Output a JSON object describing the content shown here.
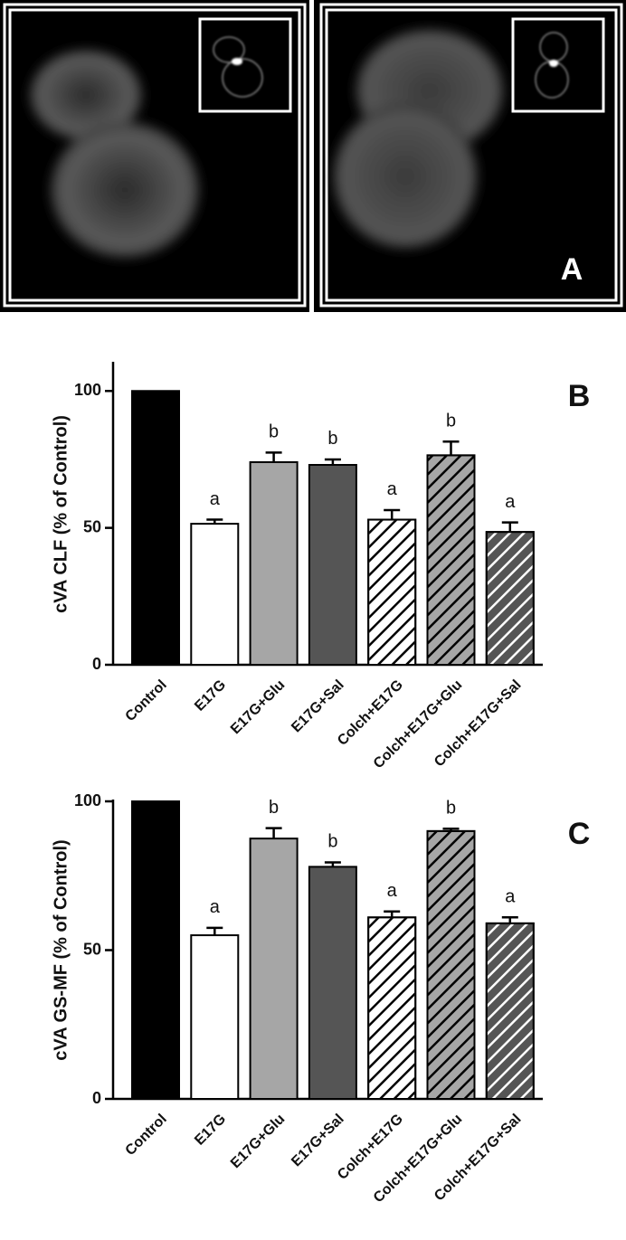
{
  "image_panel": {
    "label": "A"
  },
  "chart_data": [
    {
      "type": "bar",
      "panel_label": "B",
      "y_label": "cVA CLF (% of Control)",
      "categories": [
        "Control",
        "E17G",
        "E17G+Glu",
        "E17G+Sal",
        "Colch+E17G",
        "Colch+E17G+Glu",
        "Colch+E17G+Sal"
      ],
      "values": [
        100,
        51.5,
        74,
        73,
        53,
        76.5,
        48.5
      ],
      "errors": [
        null,
        1.5,
        3.5,
        2,
        3.5,
        5,
        3.5
      ],
      "annotations": [
        null,
        "a",
        "b",
        "b",
        "a",
        "b",
        "a"
      ],
      "colors": [
        "#000000",
        "#ffffff",
        "#a6a6a6",
        "#555555",
        "#ffffff",
        "#a6a6a6",
        "#555555"
      ],
      "hatch": [
        null,
        null,
        null,
        null,
        "#000000",
        "#000000",
        "#ffffff"
      ],
      "ylim": [
        0,
        110
      ],
      "yticks": [
        0,
        50,
        100
      ],
      "grid": false
    },
    {
      "type": "bar",
      "panel_label": "C",
      "y_label": "cVA GS-MF (% of Control)",
      "categories": [
        "Control",
        "E17G",
        "E17G+Glu",
        "E17G+Sal",
        "Colch+E17G",
        "Colch+E17G+Glu",
        "Colch+E17G+Sal"
      ],
      "values": [
        100,
        55,
        87.5,
        78,
        61,
        90,
        59
      ],
      "errors": [
        null,
        2.5,
        3.5,
        1.5,
        2,
        0.8,
        2
      ],
      "annotations": [
        null,
        "a",
        "b",
        "b",
        "a",
        "b",
        "a"
      ],
      "colors": [
        "#000000",
        "#ffffff",
        "#a6a6a6",
        "#555555",
        "#ffffff",
        "#a6a6a6",
        "#555555"
      ],
      "hatch": [
        null,
        null,
        null,
        null,
        "#000000",
        "#000000",
        "#ffffff"
      ],
      "ylim": [
        0,
        100
      ],
      "yticks": [
        0,
        50,
        100
      ],
      "grid": false
    }
  ]
}
